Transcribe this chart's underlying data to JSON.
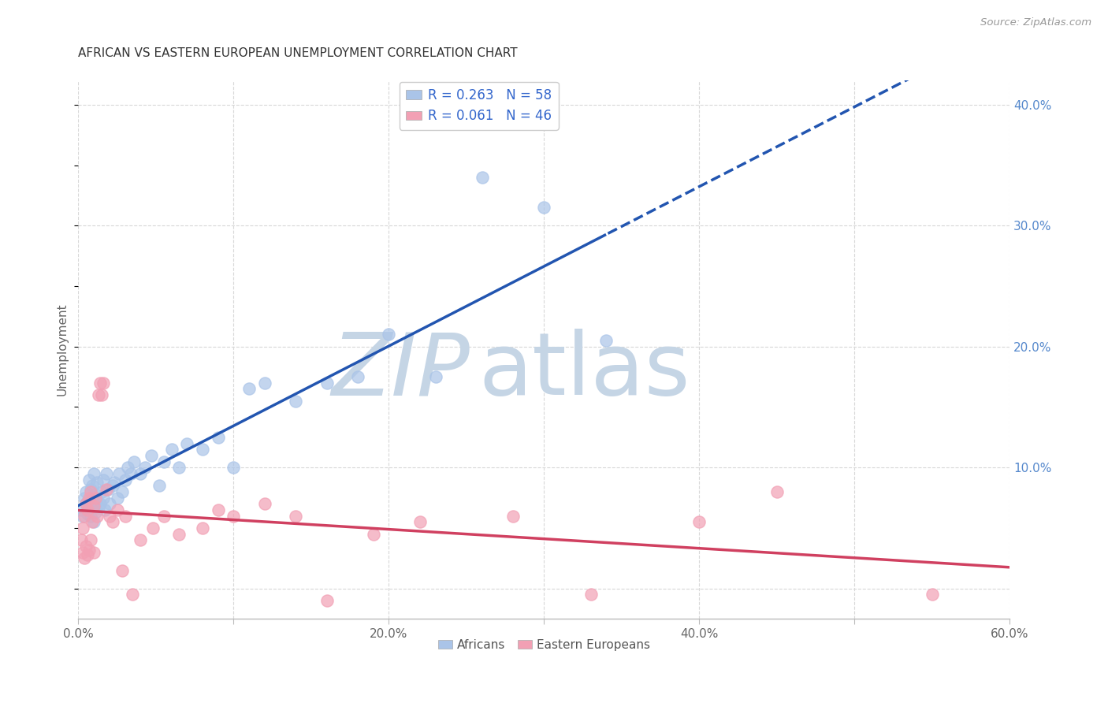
{
  "title": "AFRICAN VS EASTERN EUROPEAN UNEMPLOYMENT CORRELATION CHART",
  "source": "Source: ZipAtlas.com",
  "ylabel": "Unemployment",
  "xlim": [
    0.0,
    0.6
  ],
  "ylim": [
    -0.025,
    0.42
  ],
  "background_color": "#ffffff",
  "grid_color": "#d8d8d8",
  "african_color": "#aac4e8",
  "eastern_color": "#f2a0b4",
  "african_line_color": "#2255b0",
  "eastern_line_color": "#d04060",
  "african_R": 0.263,
  "african_N": 58,
  "eastern_R": 0.061,
  "eastern_N": 46,
  "legend_label_african": "Africans",
  "legend_label_eastern": "Eastern Europeans",
  "africans_x": [
    0.002,
    0.003,
    0.004,
    0.005,
    0.005,
    0.006,
    0.006,
    0.007,
    0.007,
    0.008,
    0.008,
    0.009,
    0.009,
    0.01,
    0.01,
    0.011,
    0.011,
    0.012,
    0.012,
    0.013,
    0.014,
    0.015,
    0.016,
    0.016,
    0.017,
    0.018,
    0.019,
    0.02,
    0.022,
    0.023,
    0.025,
    0.026,
    0.028,
    0.03,
    0.032,
    0.034,
    0.036,
    0.04,
    0.043,
    0.047,
    0.052,
    0.055,
    0.06,
    0.065,
    0.07,
    0.08,
    0.09,
    0.1,
    0.11,
    0.12,
    0.14,
    0.16,
    0.18,
    0.2,
    0.23,
    0.26,
    0.3,
    0.34
  ],
  "africans_y": [
    0.065,
    0.06,
    0.075,
    0.07,
    0.08,
    0.062,
    0.072,
    0.068,
    0.09,
    0.06,
    0.082,
    0.07,
    0.085,
    0.055,
    0.095,
    0.063,
    0.078,
    0.073,
    0.088,
    0.067,
    0.07,
    0.08,
    0.075,
    0.09,
    0.065,
    0.095,
    0.082,
    0.07,
    0.085,
    0.088,
    0.075,
    0.095,
    0.08,
    0.09,
    0.1,
    0.095,
    0.105,
    0.095,
    0.1,
    0.11,
    0.085,
    0.105,
    0.115,
    0.1,
    0.12,
    0.115,
    0.125,
    0.1,
    0.165,
    0.17,
    0.155,
    0.17,
    0.175,
    0.21,
    0.175,
    0.34,
    0.315,
    0.205
  ],
  "eastern_x": [
    0.002,
    0.003,
    0.003,
    0.004,
    0.004,
    0.005,
    0.005,
    0.006,
    0.006,
    0.007,
    0.007,
    0.008,
    0.008,
    0.009,
    0.01,
    0.01,
    0.011,
    0.012,
    0.013,
    0.014,
    0.015,
    0.016,
    0.018,
    0.02,
    0.022,
    0.025,
    0.028,
    0.03,
    0.035,
    0.04,
    0.048,
    0.055,
    0.065,
    0.08,
    0.09,
    0.1,
    0.12,
    0.14,
    0.16,
    0.19,
    0.22,
    0.28,
    0.33,
    0.4,
    0.45,
    0.55
  ],
  "eastern_y": [
    0.04,
    0.03,
    0.05,
    0.025,
    0.06,
    0.035,
    0.07,
    0.028,
    0.065,
    0.032,
    0.075,
    0.04,
    0.08,
    0.055,
    0.03,
    0.068,
    0.075,
    0.06,
    0.16,
    0.17,
    0.16,
    0.17,
    0.082,
    0.06,
    0.055,
    0.065,
    0.015,
    0.06,
    -0.005,
    0.04,
    0.05,
    0.06,
    0.045,
    0.05,
    0.065,
    0.06,
    0.07,
    0.06,
    -0.01,
    0.045,
    0.055,
    0.06,
    -0.005,
    0.055,
    0.08,
    -0.005
  ],
  "watermark_zip": "ZIP",
  "watermark_atlas": "atlas",
  "watermark_color_zip": "#c5d5e5",
  "watermark_color_atlas": "#c5d5e5",
  "watermark_fontsize": 80
}
